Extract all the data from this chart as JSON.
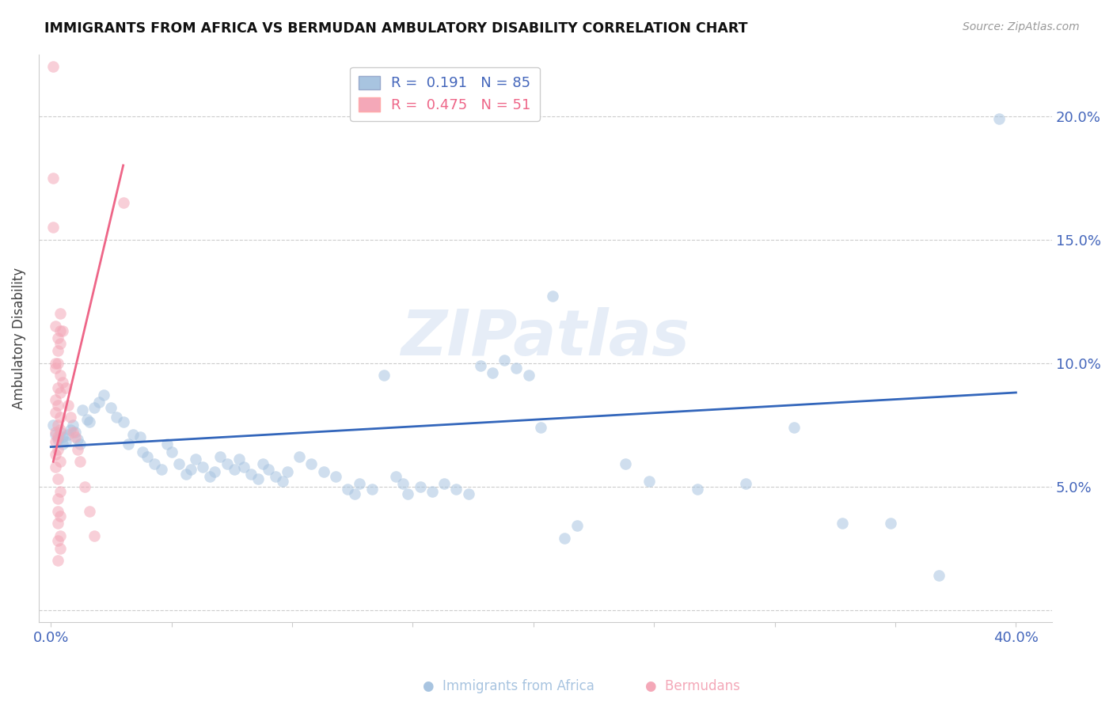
{
  "title": "IMMIGRANTS FROM AFRICA VS BERMUDAN AMBULATORY DISABILITY CORRELATION CHART",
  "source": "Source: ZipAtlas.com",
  "ylabel": "Ambulatory Disability",
  "watermark": "ZIPatlas",
  "xlim": [
    -0.005,
    0.415
  ],
  "ylim": [
    -0.005,
    0.225
  ],
  "legend_blue_r": "0.191",
  "legend_blue_n": "85",
  "legend_pink_r": "0.475",
  "legend_pink_n": "51",
  "blue_color": "#A8C4E0",
  "pink_color": "#F4A8B8",
  "line_blue_color": "#3366BB",
  "line_pink_color": "#EE6688",
  "tick_color": "#4466BB",
  "blue_scatter": [
    [
      0.001,
      0.075
    ],
    [
      0.002,
      0.071
    ],
    [
      0.003,
      0.069
    ],
    [
      0.004,
      0.072
    ],
    [
      0.005,
      0.07
    ],
    [
      0.005,
      0.067
    ],
    [
      0.006,
      0.068
    ],
    [
      0.007,
      0.071
    ],
    [
      0.008,
      0.073
    ],
    [
      0.009,
      0.075
    ],
    [
      0.01,
      0.072
    ],
    [
      0.011,
      0.069
    ],
    [
      0.012,
      0.067
    ],
    [
      0.013,
      0.081
    ],
    [
      0.015,
      0.077
    ],
    [
      0.016,
      0.076
    ],
    [
      0.018,
      0.082
    ],
    [
      0.02,
      0.084
    ],
    [
      0.022,
      0.087
    ],
    [
      0.025,
      0.082
    ],
    [
      0.027,
      0.078
    ],
    [
      0.03,
      0.076
    ],
    [
      0.032,
      0.067
    ],
    [
      0.034,
      0.071
    ],
    [
      0.037,
      0.07
    ],
    [
      0.038,
      0.064
    ],
    [
      0.04,
      0.062
    ],
    [
      0.043,
      0.059
    ],
    [
      0.046,
      0.057
    ],
    [
      0.048,
      0.067
    ],
    [
      0.05,
      0.064
    ],
    [
      0.053,
      0.059
    ],
    [
      0.056,
      0.055
    ],
    [
      0.058,
      0.057
    ],
    [
      0.06,
      0.061
    ],
    [
      0.063,
      0.058
    ],
    [
      0.066,
      0.054
    ],
    [
      0.068,
      0.056
    ],
    [
      0.07,
      0.062
    ],
    [
      0.073,
      0.059
    ],
    [
      0.076,
      0.057
    ],
    [
      0.078,
      0.061
    ],
    [
      0.08,
      0.058
    ],
    [
      0.083,
      0.055
    ],
    [
      0.086,
      0.053
    ],
    [
      0.088,
      0.059
    ],
    [
      0.09,
      0.057
    ],
    [
      0.093,
      0.054
    ],
    [
      0.096,
      0.052
    ],
    [
      0.098,
      0.056
    ],
    [
      0.103,
      0.062
    ],
    [
      0.108,
      0.059
    ],
    [
      0.113,
      0.056
    ],
    [
      0.118,
      0.054
    ],
    [
      0.123,
      0.049
    ],
    [
      0.126,
      0.047
    ],
    [
      0.128,
      0.051
    ],
    [
      0.133,
      0.049
    ],
    [
      0.138,
      0.095
    ],
    [
      0.143,
      0.054
    ],
    [
      0.146,
      0.051
    ],
    [
      0.148,
      0.047
    ],
    [
      0.153,
      0.05
    ],
    [
      0.158,
      0.048
    ],
    [
      0.163,
      0.051
    ],
    [
      0.168,
      0.049
    ],
    [
      0.173,
      0.047
    ],
    [
      0.178,
      0.099
    ],
    [
      0.183,
      0.096
    ],
    [
      0.188,
      0.101
    ],
    [
      0.193,
      0.098
    ],
    [
      0.198,
      0.095
    ],
    [
      0.203,
      0.074
    ],
    [
      0.208,
      0.127
    ],
    [
      0.213,
      0.029
    ],
    [
      0.218,
      0.034
    ],
    [
      0.238,
      0.059
    ],
    [
      0.248,
      0.052
    ],
    [
      0.268,
      0.049
    ],
    [
      0.288,
      0.051
    ],
    [
      0.308,
      0.074
    ],
    [
      0.328,
      0.035
    ],
    [
      0.348,
      0.035
    ],
    [
      0.368,
      0.014
    ],
    [
      0.393,
      0.199
    ]
  ],
  "pink_scatter": [
    [
      0.001,
      0.22
    ],
    [
      0.001,
      0.175
    ],
    [
      0.001,
      0.155
    ],
    [
      0.002,
      0.115
    ],
    [
      0.002,
      0.1
    ],
    [
      0.002,
      0.098
    ],
    [
      0.002,
      0.085
    ],
    [
      0.002,
      0.08
    ],
    [
      0.002,
      0.072
    ],
    [
      0.002,
      0.068
    ],
    [
      0.002,
      0.063
    ],
    [
      0.002,
      0.058
    ],
    [
      0.003,
      0.11
    ],
    [
      0.003,
      0.105
    ],
    [
      0.003,
      0.1
    ],
    [
      0.003,
      0.09
    ],
    [
      0.003,
      0.083
    ],
    [
      0.003,
      0.075
    ],
    [
      0.003,
      0.07
    ],
    [
      0.003,
      0.065
    ],
    [
      0.003,
      0.053
    ],
    [
      0.003,
      0.045
    ],
    [
      0.003,
      0.04
    ],
    [
      0.003,
      0.035
    ],
    [
      0.003,
      0.028
    ],
    [
      0.003,
      0.02
    ],
    [
      0.004,
      0.12
    ],
    [
      0.004,
      0.113
    ],
    [
      0.004,
      0.108
    ],
    [
      0.004,
      0.095
    ],
    [
      0.004,
      0.088
    ],
    [
      0.004,
      0.078
    ],
    [
      0.004,
      0.073
    ],
    [
      0.004,
      0.06
    ],
    [
      0.004,
      0.048
    ],
    [
      0.004,
      0.038
    ],
    [
      0.004,
      0.03
    ],
    [
      0.004,
      0.025
    ],
    [
      0.005,
      0.092
    ],
    [
      0.005,
      0.113
    ],
    [
      0.006,
      0.09
    ],
    [
      0.007,
      0.083
    ],
    [
      0.008,
      0.078
    ],
    [
      0.009,
      0.072
    ],
    [
      0.01,
      0.07
    ],
    [
      0.011,
      0.065
    ],
    [
      0.012,
      0.06
    ],
    [
      0.014,
      0.05
    ],
    [
      0.016,
      0.04
    ],
    [
      0.018,
      0.03
    ],
    [
      0.03,
      0.165
    ]
  ],
  "blue_line_x": [
    0.0,
    0.4
  ],
  "blue_line_y": [
    0.066,
    0.088
  ],
  "pink_line_x": [
    0.001,
    0.03
  ],
  "pink_line_y": [
    0.06,
    0.18
  ]
}
